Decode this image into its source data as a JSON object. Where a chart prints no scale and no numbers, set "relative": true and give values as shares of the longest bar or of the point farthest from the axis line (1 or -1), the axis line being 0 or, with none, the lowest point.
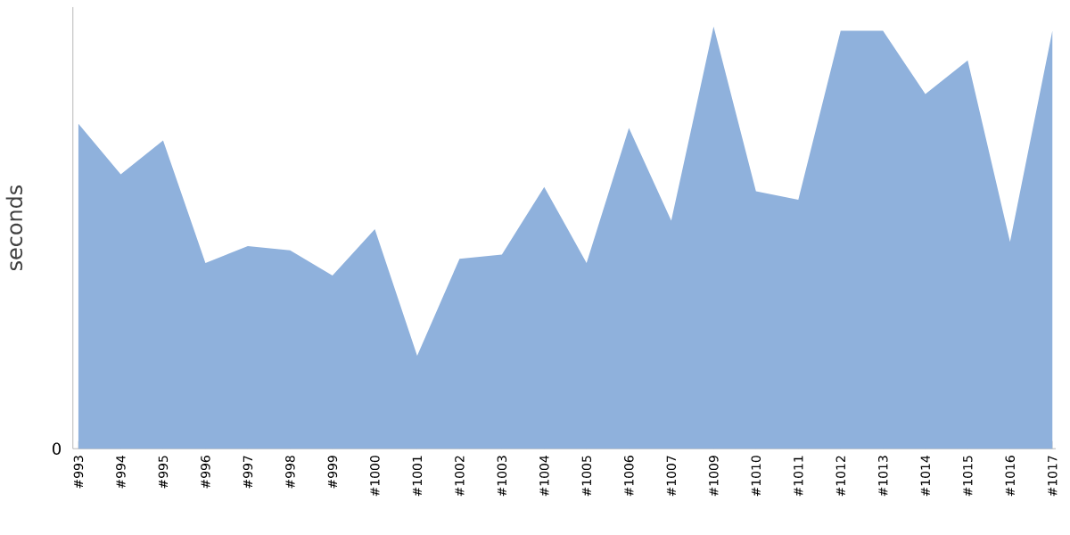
{
  "chart_data": {
    "type": "area",
    "relative": true,
    "ylabel": "seconds",
    "color": "#8fb1dc",
    "categories": [
      "#993",
      "#994",
      "#995",
      "#996",
      "#997",
      "#998",
      "#999",
      "#1000",
      "#1001",
      "#1002",
      "#1003",
      "#1004",
      "#1005",
      "#1006",
      "#1007",
      "#1009",
      "#1010",
      "#1011",
      "#1012",
      "#1013",
      "#1014",
      "#1015",
      "#1016",
      "#1017"
    ],
    "values": [
      0.77,
      0.65,
      0.73,
      0.44,
      0.48,
      0.47,
      0.41,
      0.52,
      0.22,
      0.45,
      0.46,
      0.62,
      0.44,
      0.76,
      0.54,
      1,
      0.61,
      0.59,
      0.99,
      0.99,
      0.84,
      0.92,
      0.49,
      0.99
    ],
    "annotations": [
      "0"
    ]
  }
}
